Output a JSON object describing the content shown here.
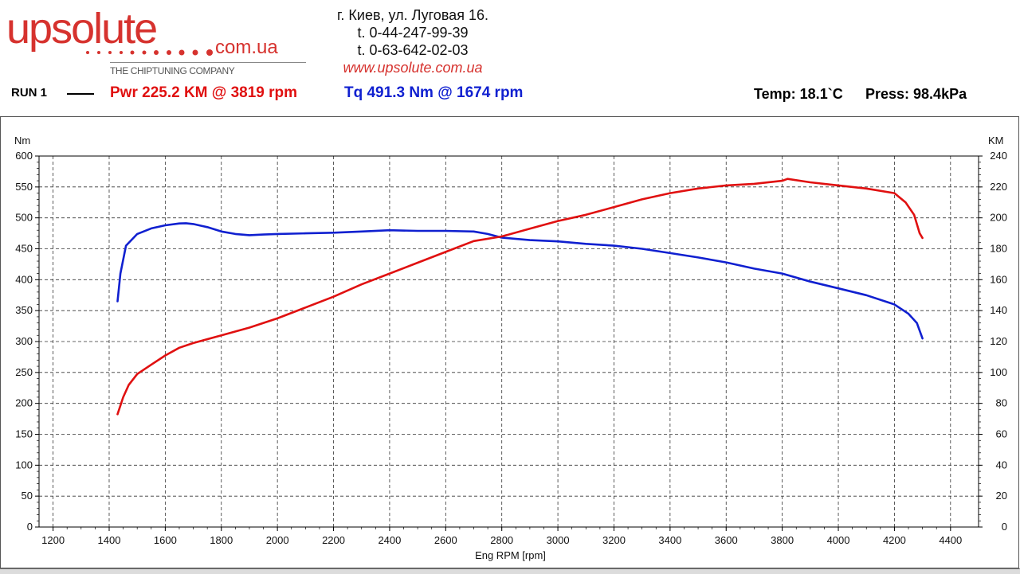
{
  "header": {
    "logo_word": "upsolute",
    "logo_domain": "com.ua",
    "logo_tagline": "THE CHIPTUNING COMPANY",
    "address": "г. Киев, ул. Луговая 16.",
    "phone1": "t. 0-44-247-99-39",
    "phone2": "t. 0-63-642-02-03",
    "website": "www.upsolute.com.ua"
  },
  "run": {
    "label": "RUN 1",
    "power_text": "Pwr  225.2 KM @ 3819 rpm",
    "torque_text": "Tq 491.3 Nm @ 1674 rpm",
    "temp_text": "Temp: 18.1`C",
    "press_text": "Press: 98.4kPa"
  },
  "colors": {
    "power": "#e01010",
    "torque": "#1020d0",
    "brand": "#d6322e"
  },
  "chart_data": {
    "type": "line",
    "xlabel": "Eng RPM [rpm]",
    "ylabel_left": "Nm",
    "ylabel_right": "KM",
    "xlim": [
      1150,
      4500
    ],
    "xticks": [
      1200,
      1400,
      1600,
      1800,
      2000,
      2200,
      2400,
      2600,
      2800,
      3000,
      3200,
      3400,
      3600,
      3800,
      4000,
      4200,
      4400
    ],
    "ylim_left": [
      0,
      600
    ],
    "yticks_left": [
      0,
      50,
      100,
      150,
      200,
      250,
      300,
      350,
      400,
      450,
      500,
      550,
      600
    ],
    "ylim_right": [
      0,
      240
    ],
    "yticks_right": [
      0,
      20,
      40,
      60,
      80,
      100,
      120,
      140,
      160,
      180,
      200,
      220,
      240
    ],
    "grid": true,
    "series": [
      {
        "name": "Tq",
        "axis": "left",
        "x": [
          1430,
          1440,
          1460,
          1500,
          1550,
          1600,
          1650,
          1674,
          1700,
          1750,
          1800,
          1850,
          1900,
          1950,
          2000,
          2100,
          2200,
          2300,
          2400,
          2500,
          2600,
          2700,
          2750,
          2800,
          2900,
          3000,
          3100,
          3200,
          3300,
          3400,
          3500,
          3600,
          3700,
          3800,
          3900,
          4000,
          4100,
          4200,
          4250,
          4280,
          4300
        ],
        "y": [
          365,
          410,
          455,
          474,
          483,
          488,
          491,
          491.3,
          490,
          485,
          478,
          474,
          472,
          473,
          474,
          475,
          476,
          478,
          480,
          479,
          479,
          478,
          474,
          468,
          464,
          462,
          458,
          455,
          450,
          443,
          436,
          428,
          418,
          410,
          397,
          386,
          375,
          360,
          345,
          330,
          305
        ]
      },
      {
        "name": "Pwr",
        "axis": "right",
        "x": [
          1430,
          1450,
          1470,
          1500,
          1550,
          1600,
          1650,
          1700,
          1800,
          1900,
          2000,
          2100,
          2200,
          2300,
          2400,
          2500,
          2600,
          2700,
          2800,
          2900,
          3000,
          3100,
          3200,
          3300,
          3400,
          3500,
          3600,
          3700,
          3800,
          3819,
          3900,
          4000,
          4100,
          4200,
          4240,
          4270,
          4290,
          4300
        ],
        "y": [
          73,
          84,
          92,
          99,
          105,
          111,
          116,
          119,
          124,
          129,
          135,
          142,
          149,
          157,
          164,
          171,
          178,
          185,
          188,
          193,
          198,
          202,
          207,
          212,
          216,
          219,
          221,
          222,
          224,
          225.2,
          223,
          221,
          219,
          216,
          210,
          202,
          190,
          187
        ]
      }
    ]
  }
}
